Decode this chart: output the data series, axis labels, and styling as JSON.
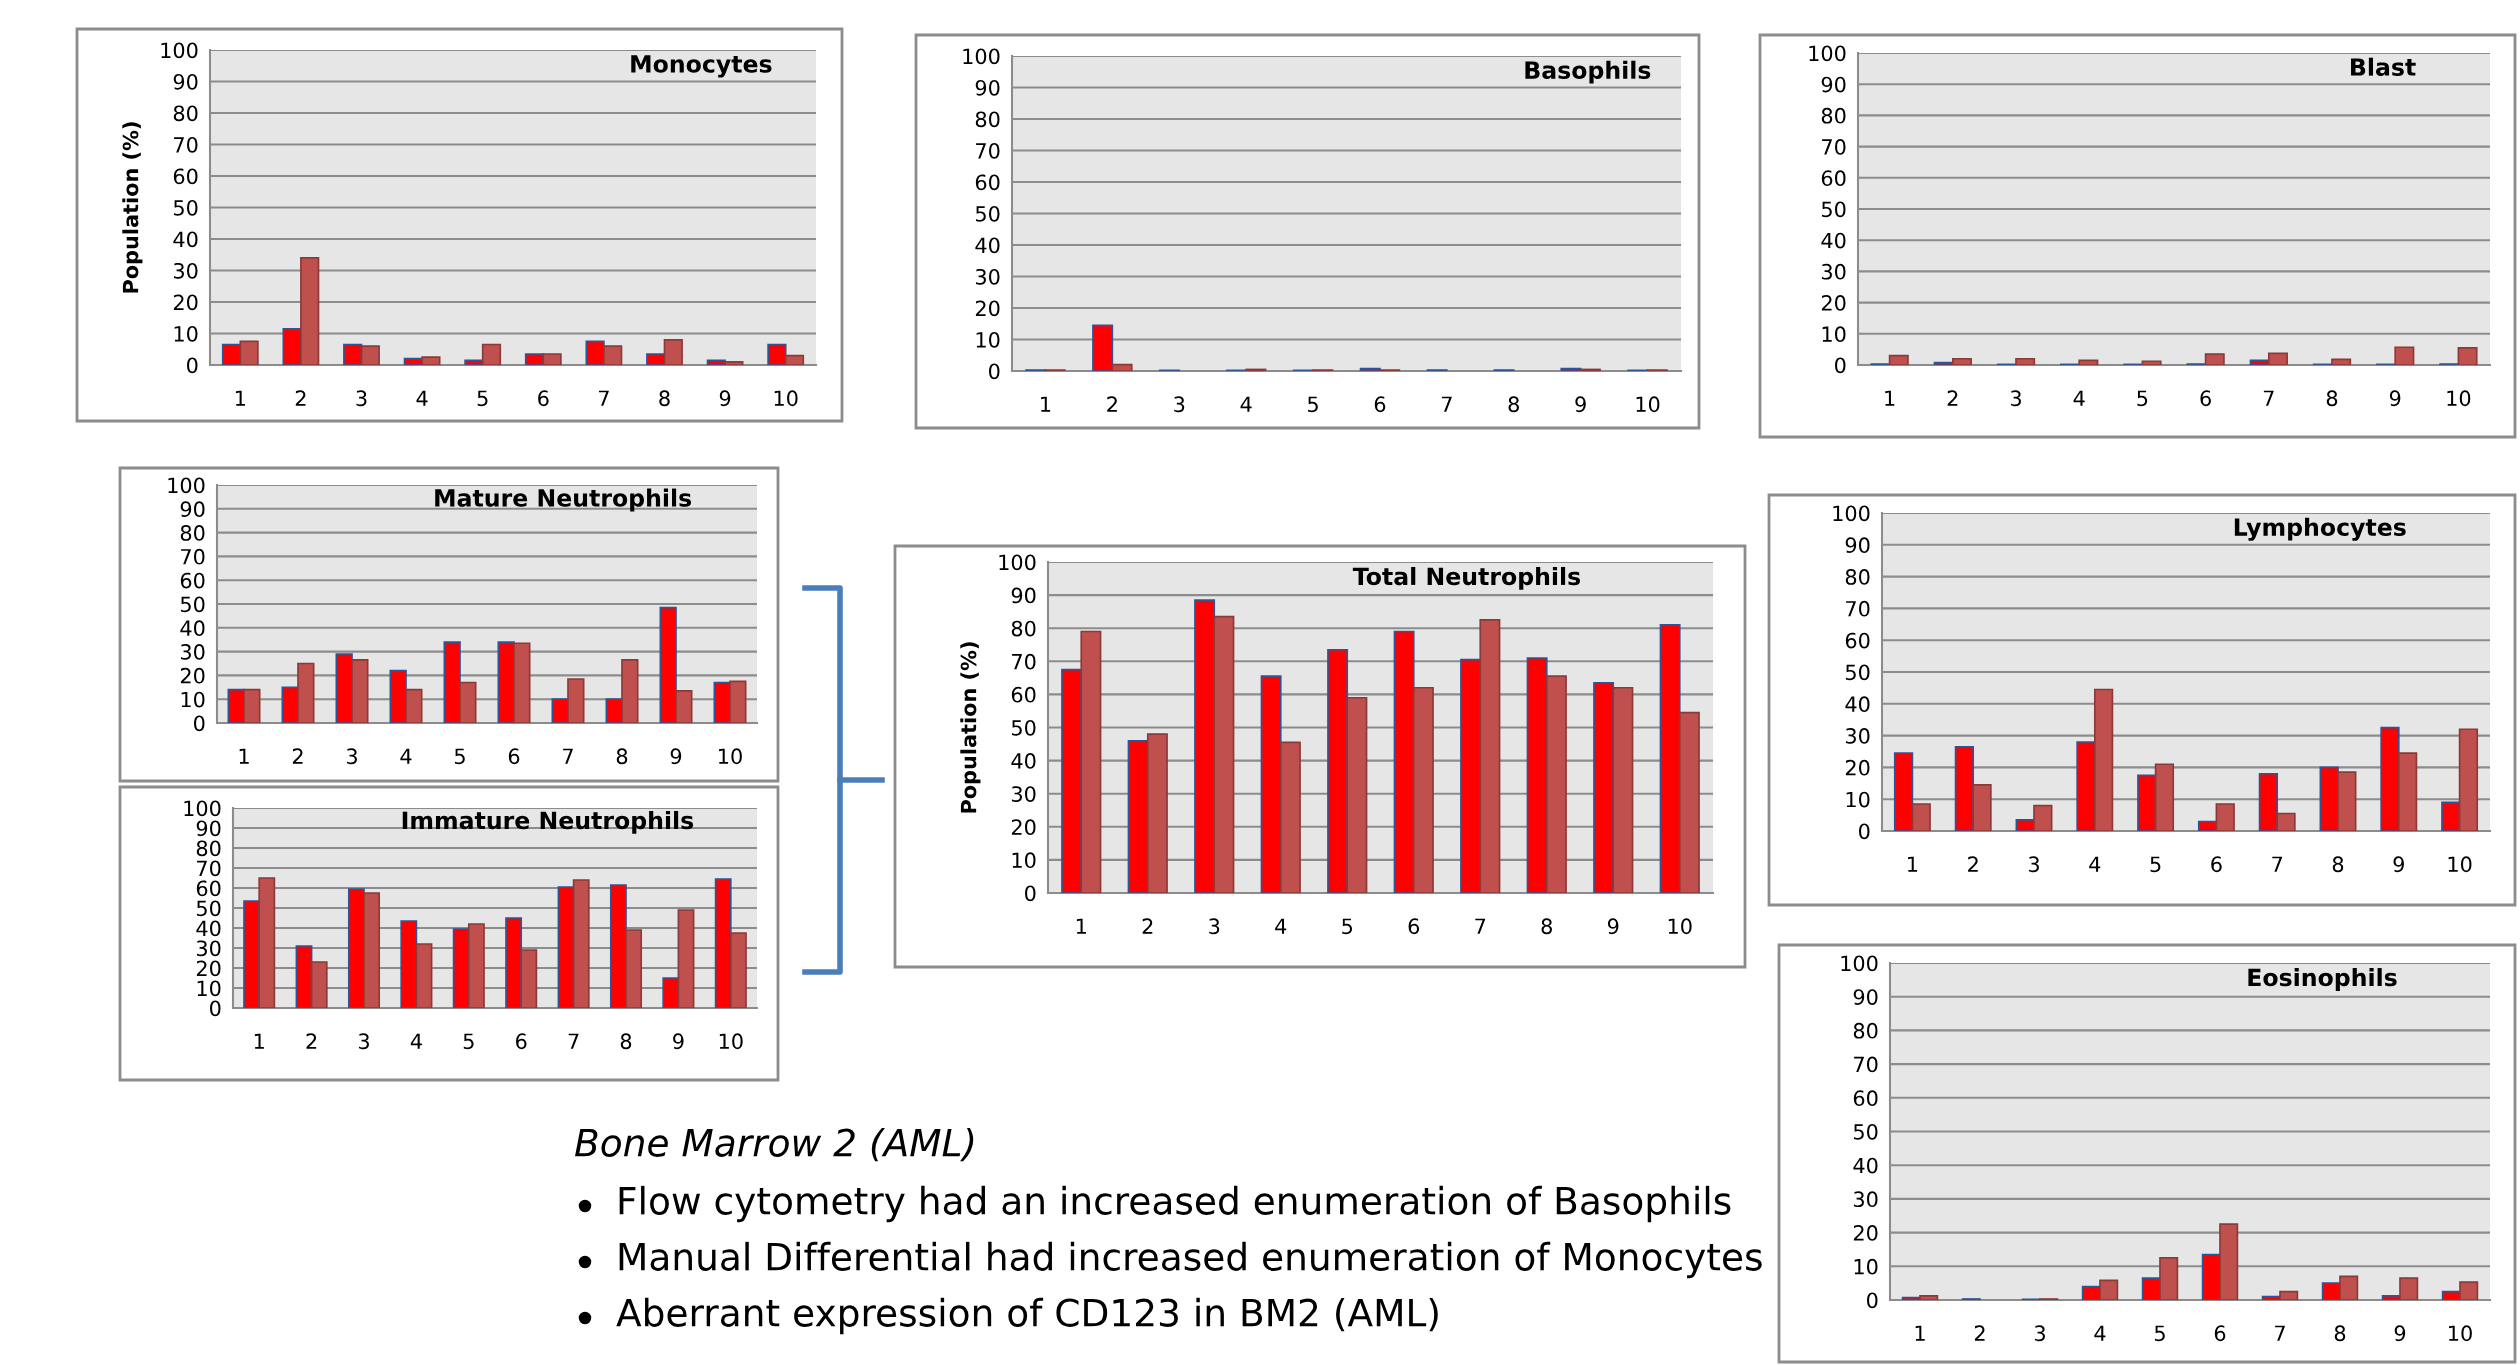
{
  "chart_data": [
    {
      "type": "bar",
      "title": "Monocytes",
      "ylabel": "Population (%)",
      "categories": [
        "1",
        "2",
        "3",
        "4",
        "5",
        "6",
        "7",
        "8",
        "9",
        "10"
      ],
      "ylim": [
        0,
        100
      ],
      "yticks": [
        0,
        10,
        20,
        30,
        40,
        50,
        60,
        70,
        80,
        90,
        100
      ],
      "grid": "y",
      "series": [
        {
          "color": "#ff0000",
          "values": [
            6.5,
            11.5,
            6.5,
            2,
            1.5,
            3.5,
            7.5,
            3.5,
            1.5,
            6.5
          ]
        },
        {
          "color": "#c0504d",
          "values": [
            7.5,
            34,
            6,
            2.5,
            6.5,
            3.5,
            6,
            8,
            1,
            3
          ]
        }
      ]
    },
    {
      "type": "bar",
      "title": "Basophils",
      "categories": [
        "1",
        "2",
        "3",
        "4",
        "5",
        "6",
        "7",
        "8",
        "9",
        "10"
      ],
      "ylim": [
        0,
        100
      ],
      "yticks": [
        0,
        10,
        20,
        30,
        40,
        50,
        60,
        70,
        80,
        90,
        100
      ],
      "grid": "y",
      "series": [
        {
          "color": "#ff0000",
          "values": [
            0.3,
            14.5,
            0.2,
            0.2,
            0.2,
            0.8,
            0.3,
            0.3,
            0.8,
            0.2
          ]
        },
        {
          "color": "#c0504d",
          "values": [
            0.3,
            2,
            0,
            0.5,
            0.3,
            0.3,
            0,
            0,
            0.5,
            0.3
          ]
        }
      ]
    },
    {
      "type": "bar",
      "title": "Blast",
      "categories": [
        "1",
        "2",
        "3",
        "4",
        "5",
        "6",
        "7",
        "8",
        "9",
        "10"
      ],
      "ylim": [
        0,
        100
      ],
      "yticks": [
        0,
        10,
        20,
        30,
        40,
        50,
        60,
        70,
        80,
        90,
        100
      ],
      "grid": "y",
      "series": [
        {
          "color": "#ff0000",
          "values": [
            0.3,
            0.8,
            0.2,
            0.2,
            0.2,
            0.3,
            1.5,
            0.2,
            0.2,
            0.3
          ]
        },
        {
          "color": "#c0504d",
          "values": [
            3,
            2,
            2,
            1.5,
            1.2,
            3.5,
            3.7,
            1.8,
            5.7,
            5.5
          ]
        }
      ]
    },
    {
      "type": "bar",
      "title": "Mature Neutrophils",
      "categories": [
        "1",
        "2",
        "3",
        "4",
        "5",
        "6",
        "7",
        "8",
        "9",
        "10"
      ],
      "ylim": [
        0,
        100
      ],
      "yticks": [
        0,
        10,
        20,
        30,
        40,
        50,
        60,
        70,
        80,
        90,
        100
      ],
      "grid": "y",
      "series": [
        {
          "color": "#ff0000",
          "values": [
            14,
            15,
            29,
            22,
            34,
            34,
            10,
            10,
            48.5,
            17
          ]
        },
        {
          "color": "#c0504d",
          "values": [
            14,
            25,
            26.5,
            14,
            17,
            33.5,
            18.5,
            26.5,
            13.5,
            17.5
          ]
        }
      ]
    },
    {
      "type": "bar",
      "title": "Immature Neutrophils",
      "categories": [
        "1",
        "2",
        "3",
        "4",
        "5",
        "6",
        "7",
        "8",
        "9",
        "10"
      ],
      "ylim": [
        0,
        100
      ],
      "yticks": [
        0,
        10,
        20,
        30,
        40,
        50,
        60,
        70,
        80,
        90,
        100
      ],
      "grid": "y",
      "series": [
        {
          "color": "#ff0000",
          "values": [
            53.5,
            31,
            59.5,
            43.5,
            39.5,
            45,
            60.5,
            61.5,
            15,
            64.5
          ]
        },
        {
          "color": "#c0504d",
          "values": [
            65,
            23,
            57.5,
            32,
            42,
            29,
            64,
            39,
            49,
            37.5
          ]
        }
      ]
    },
    {
      "type": "bar",
      "title": "Total Neutrophils",
      "ylabel": "Population (%)",
      "categories": [
        "1",
        "2",
        "3",
        "4",
        "5",
        "6",
        "7",
        "8",
        "9",
        "10"
      ],
      "ylim": [
        0,
        100
      ],
      "yticks": [
        0,
        10,
        20,
        30,
        40,
        50,
        60,
        70,
        80,
        90,
        100
      ],
      "grid": "y",
      "series": [
        {
          "color": "#ff0000",
          "values": [
            67.5,
            46,
            88.5,
            65.5,
            73.5,
            79,
            70.5,
            71,
            63.5,
            81
          ]
        },
        {
          "color": "#c0504d",
          "values": [
            79,
            48,
            83.5,
            45.5,
            59,
            62,
            82.5,
            65.5,
            62,
            54.5
          ]
        }
      ]
    },
    {
      "type": "bar",
      "title": "Lymphocytes",
      "categories": [
        "1",
        "2",
        "3",
        "4",
        "5",
        "6",
        "7",
        "8",
        "9",
        "10"
      ],
      "ylim": [
        0,
        100
      ],
      "yticks": [
        0,
        10,
        20,
        30,
        40,
        50,
        60,
        70,
        80,
        90,
        100
      ],
      "grid": "y",
      "series": [
        {
          "color": "#ff0000",
          "values": [
            24.5,
            26.5,
            3.5,
            28,
            17.5,
            3,
            18,
            20,
            32.5,
            9
          ]
        },
        {
          "color": "#c0504d",
          "values": [
            8.5,
            14.5,
            8,
            44.5,
            21,
            8.5,
            5.5,
            18.5,
            24.5,
            32
          ]
        }
      ]
    },
    {
      "type": "bar",
      "title": "Eosinophils",
      "categories": [
        "1",
        "2",
        "3",
        "4",
        "5",
        "6",
        "7",
        "8",
        "9",
        "10"
      ],
      "ylim": [
        0,
        100
      ],
      "yticks": [
        0,
        10,
        20,
        30,
        40,
        50,
        60,
        70,
        80,
        90,
        100
      ],
      "grid": "y",
      "series": [
        {
          "color": "#ff0000",
          "values": [
            0.7,
            0.3,
            0.2,
            4,
            6.5,
            13.5,
            1,
            5,
            1.2,
            2.5
          ]
        },
        {
          "color": "#c0504d",
          "values": [
            1.2,
            0,
            0.3,
            5.8,
            12.5,
            22.5,
            2.5,
            7,
            6.5,
            5.3
          ]
        }
      ]
    },
    {
      "type": "other",
      "annotations": [
        "Bone Marrow 2 (AML)",
        "Flow cytometry had an increased enumeration of Basophils",
        "Manual Differential had increased enumeration of Monocytes",
        "Aberrant expression of CD123 in BM2 (AML)"
      ]
    }
  ]
}
